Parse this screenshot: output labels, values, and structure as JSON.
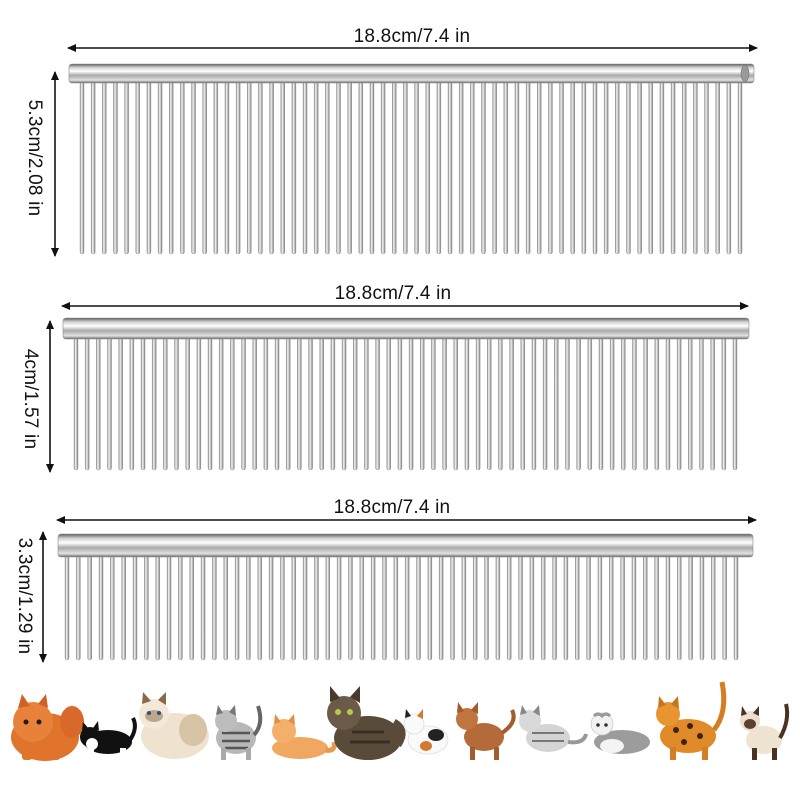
{
  "combs": [
    {
      "width_label": "18.8cm/7.4 in",
      "height_label": "5.3cm/2.08 in"
    },
    {
      "width_label": "18.8cm/7.4 in",
      "height_label": "4cm/1.57 in"
    },
    {
      "width_label": "18.8cm/7.4 in",
      "height_label": "3.3cm/1.29 in"
    }
  ],
  "colors": {
    "arrow": "#111111",
    "steel_dark": "#6e6e6e",
    "steel_light": "#f4f4f4"
  },
  "cats": [
    "persian-orange",
    "tuxedo",
    "ragdoll",
    "tabby-silver",
    "orange-tabby",
    "maine-coon",
    "calico",
    "abyssinian",
    "silver-tabby",
    "scottish-fold",
    "bengal",
    "siamese"
  ]
}
